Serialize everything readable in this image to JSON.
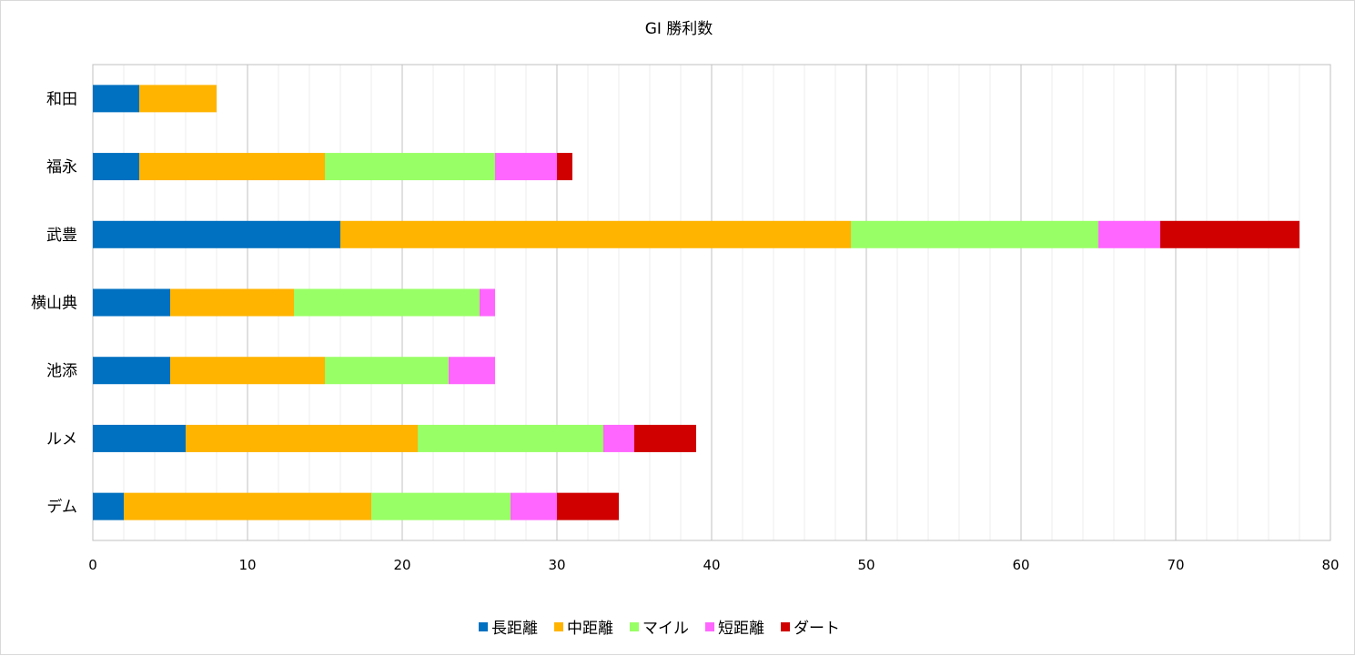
{
  "chart_data": {
    "type": "bar",
    "orientation": "horizontal",
    "stacked": true,
    "title": "GI 勝利数",
    "xlabel": "",
    "ylabel": "",
    "xlim": [
      0,
      80
    ],
    "xticks": [
      0,
      10,
      20,
      30,
      40,
      50,
      60,
      70,
      80
    ],
    "minor_step": 2,
    "grid": true,
    "legend_position": "bottom",
    "categories": [
      "和田",
      "福永",
      "武豊",
      "横山典",
      "池添",
      "ルメ",
      "デム"
    ],
    "series": [
      {
        "name": "長距離",
        "color": "#0070c0",
        "values": [
          3,
          3,
          16,
          5,
          5,
          6,
          2
        ]
      },
      {
        "name": "中距離",
        "color": "#ffb400",
        "values": [
          5,
          12,
          33,
          8,
          10,
          15,
          16
        ]
      },
      {
        "name": "マイル",
        "color": "#99ff66",
        "values": [
          0,
          11,
          16,
          12,
          8,
          12,
          9
        ]
      },
      {
        "name": "短距離",
        "color": "#ff66ff",
        "values": [
          0,
          4,
          4,
          1,
          3,
          2,
          3
        ]
      },
      {
        "name": "ダート",
        "color": "#d00000",
        "values": [
          0,
          1,
          9,
          0,
          0,
          4,
          4
        ]
      }
    ]
  }
}
